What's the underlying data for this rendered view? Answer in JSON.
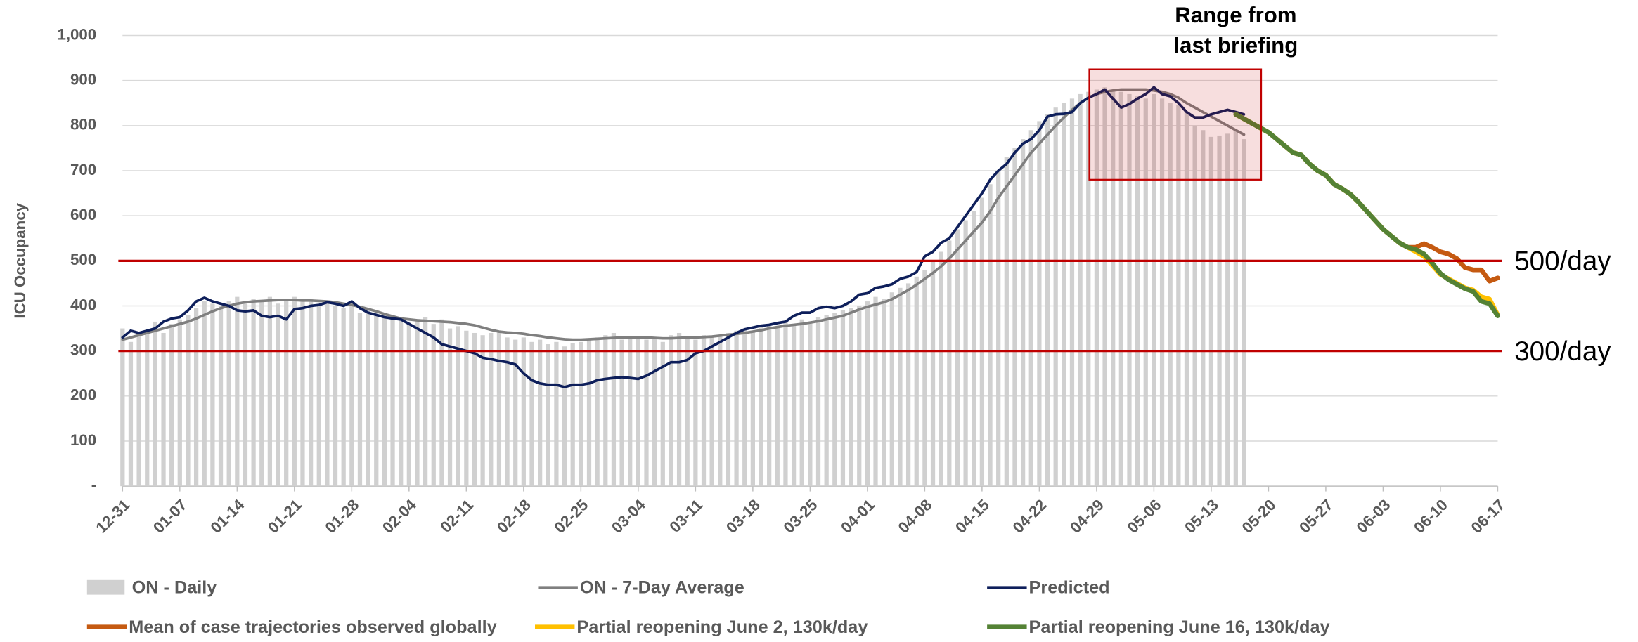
{
  "chart_data": {
    "type": "line",
    "y_label": "ICU Occupancy",
    "categories": [
      "12-31",
      null,
      null,
      null,
      null,
      null,
      null,
      "01-07",
      null,
      null,
      null,
      null,
      null,
      null,
      "01-14",
      null,
      null,
      null,
      null,
      null,
      null,
      "01-21",
      null,
      null,
      null,
      null,
      null,
      null,
      "01-28",
      null,
      null,
      null,
      null,
      null,
      null,
      "02-04",
      null,
      null,
      null,
      null,
      null,
      null,
      "02-11",
      null,
      null,
      null,
      null,
      null,
      null,
      "02-18",
      null,
      null,
      null,
      null,
      null,
      null,
      "02-25",
      null,
      null,
      null,
      null,
      null,
      null,
      "03-04",
      null,
      null,
      null,
      null,
      null,
      null,
      "03-11",
      null,
      null,
      null,
      null,
      null,
      null,
      "03-18",
      null,
      null,
      null,
      null,
      null,
      null,
      "03-25",
      null,
      null,
      null,
      null,
      null,
      null,
      "04-01",
      null,
      null,
      null,
      null,
      null,
      null,
      "04-08",
      null,
      null,
      null,
      null,
      null,
      null,
      "04-15",
      null,
      null,
      null,
      null,
      null,
      null,
      "04-22",
      null,
      null,
      null,
      null,
      null,
      null,
      "04-29",
      null,
      null,
      null,
      null,
      null,
      null,
      "05-06",
      null,
      null,
      null,
      null,
      null,
      null,
      "05-13",
      null,
      null,
      null,
      null,
      null,
      null,
      "05-20",
      null,
      null,
      null,
      null,
      null,
      null,
      "05-27",
      null,
      null,
      null,
      null,
      null,
      null,
      "06-03",
      null,
      null,
      null,
      null,
      null,
      null,
      "06-10",
      null,
      null,
      null,
      null,
      null,
      null,
      "06-17"
    ],
    "series": [
      {
        "name": "ON - Daily",
        "type": "bar",
        "color": "#d0d0d0",
        "values": [
          350,
          320,
          340,
          345,
          365,
          340,
          360,
          370,
          380,
          395,
          410,
          405,
          400,
          410,
          420,
          405,
          415,
          410,
          420,
          405,
          415,
          420,
          410,
          415,
          405,
          410,
          400,
          395,
          400,
          385,
          390,
          380,
          385,
          375,
          370,
          365,
          370,
          375,
          360,
          370,
          350,
          355,
          345,
          340,
          335,
          340,
          345,
          330,
          325,
          330,
          320,
          325,
          315,
          320,
          310,
          318,
          320,
          325,
          330,
          335,
          340,
          325,
          330,
          330,
          325,
          330,
          320,
          335,
          340,
          330,
          325,
          335,
          330,
          335,
          340,
          345,
          350,
          345,
          355,
          360,
          355,
          365,
          360,
          370,
          365,
          375,
          380,
          385,
          390,
          395,
          400,
          410,
          420,
          415,
          430,
          440,
          450,
          465,
          480,
          500,
          520,
          545,
          570,
          590,
          610,
          640,
          670,
          700,
          730,
          750,
          770,
          790,
          810,
          825,
          840,
          850,
          860,
          870,
          875,
          880,
          885,
          880,
          875,
          870,
          865,
          860,
          870,
          860,
          850,
          845,
          830,
          800,
          790,
          775,
          778,
          782,
          790,
          770,
          null,
          null,
          null,
          null,
          null,
          null,
          null,
          null,
          null,
          null,
          null,
          null,
          null,
          null,
          null,
          null,
          null,
          null,
          null,
          null,
          null,
          null,
          null,
          null,
          null,
          null,
          null,
          null,
          null,
          null,
          null
        ]
      },
      {
        "name": "ON - 7-Day Average",
        "type": "line",
        "color": "#7f7f7f",
        "width": 2.5,
        "values": [
          325,
          330,
          335,
          340,
          345,
          350,
          355,
          360,
          365,
          372,
          380,
          388,
          395,
          400,
          405,
          408,
          410,
          411,
          412,
          413,
          413,
          413,
          412,
          412,
          411,
          410,
          408,
          405,
          402,
          398,
          393,
          388,
          382,
          377,
          372,
          370,
          368,
          367,
          366,
          365,
          364,
          362,
          360,
          357,
          352,
          347,
          343,
          341,
          340,
          338,
          335,
          333,
          330,
          328,
          326,
          325,
          325,
          326,
          327,
          328,
          329,
          330,
          330,
          330,
          330,
          329,
          328,
          328,
          329,
          330,
          330,
          331,
          332,
          334,
          336,
          338,
          340,
          343,
          346,
          350,
          353,
          356,
          358,
          360,
          363,
          366,
          370,
          374,
          378,
          385,
          392,
          398,
          403,
          408,
          415,
          425,
          435,
          447,
          460,
          473,
          488,
          505,
          525,
          545,
          565,
          585,
          610,
          640,
          665,
          690,
          715,
          740,
          760,
          780,
          800,
          818,
          835,
          850,
          862,
          870,
          875,
          878,
          880,
          880,
          880,
          880,
          878,
          875,
          870,
          862,
          850,
          840,
          830,
          820,
          810,
          800,
          790,
          780,
          null,
          null,
          null,
          null,
          null,
          null,
          null,
          null,
          null,
          null,
          null,
          null,
          null,
          null,
          null,
          null,
          null,
          null,
          null,
          null,
          null,
          null,
          null,
          null,
          null,
          null,
          null,
          null,
          null,
          null,
          null
        ]
      },
      {
        "name": "Predicted",
        "type": "line",
        "color": "#0e1f5b",
        "width": 2.5,
        "values": [
          330,
          345,
          340,
          345,
          350,
          365,
          372,
          375,
          390,
          410,
          418,
          410,
          405,
          400,
          390,
          388,
          390,
          378,
          375,
          378,
          370,
          393,
          395,
          400,
          402,
          408,
          405,
          400,
          410,
          395,
          385,
          380,
          375,
          372,
          370,
          360,
          350,
          340,
          330,
          315,
          310,
          305,
          300,
          295,
          285,
          282,
          278,
          275,
          270,
          250,
          235,
          228,
          225,
          225,
          220,
          225,
          225,
          228,
          235,
          238,
          240,
          242,
          240,
          238,
          245,
          255,
          265,
          275,
          275,
          280,
          295,
          300,
          310,
          320,
          330,
          340,
          348,
          352,
          356,
          358,
          362,
          365,
          378,
          385,
          385,
          395,
          398,
          395,
          400,
          410,
          425,
          428,
          440,
          443,
          448,
          460,
          465,
          475,
          510,
          520,
          540,
          550,
          575,
          600,
          625,
          650,
          680,
          700,
          715,
          740,
          760,
          770,
          790,
          820,
          825,
          826,
          830,
          850,
          862,
          870,
          880,
          860,
          840,
          848,
          860,
          870,
          885,
          870,
          865,
          850,
          830,
          818,
          818,
          825,
          830,
          835,
          830,
          825,
          null,
          null,
          null,
          null,
          null,
          null,
          null,
          null,
          null,
          null,
          null,
          null,
          null,
          null,
          null,
          null,
          null,
          null,
          null,
          null,
          null,
          null,
          null,
          null,
          null,
          null,
          null,
          null,
          null,
          null,
          null
        ]
      },
      {
        "name": "Mean of case trajectories observed globally",
        "type": "line",
        "color": "#c55a11",
        "width": 4.5,
        "values": [
          null,
          null,
          null,
          null,
          null,
          null,
          null,
          null,
          null,
          null,
          null,
          null,
          null,
          null,
          null,
          null,
          null,
          null,
          null,
          null,
          null,
          null,
          null,
          null,
          null,
          null,
          null,
          null,
          null,
          null,
          null,
          null,
          null,
          null,
          null,
          null,
          null,
          null,
          null,
          null,
          null,
          null,
          null,
          null,
          null,
          null,
          null,
          null,
          null,
          null,
          null,
          null,
          null,
          null,
          null,
          null,
          null,
          null,
          null,
          null,
          null,
          null,
          null,
          null,
          null,
          null,
          null,
          null,
          null,
          null,
          null,
          null,
          null,
          null,
          null,
          null,
          null,
          null,
          null,
          null,
          null,
          null,
          null,
          null,
          null,
          null,
          null,
          null,
          null,
          null,
          null,
          null,
          null,
          null,
          null,
          null,
          null,
          null,
          null,
          null,
          null,
          null,
          null,
          null,
          null,
          null,
          null,
          null,
          null,
          null,
          null,
          null,
          null,
          null,
          null,
          null,
          null,
          null,
          null,
          null,
          null,
          null,
          null,
          null,
          null,
          null,
          null,
          null,
          null,
          null,
          null,
          null,
          null,
          null,
          null,
          null,
          825,
          815,
          805,
          795,
          785,
          770,
          755,
          740,
          735,
          715,
          700,
          690,
          670,
          660,
          648,
          630,
          610,
          590,
          570,
          555,
          540,
          530,
          530,
          538,
          530,
          520,
          515,
          505,
          485,
          480,
          480,
          455,
          462
        ]
      },
      {
        "name": "Partial reopening June 2, 130k/day",
        "type": "line",
        "color": "#ffc000",
        "width": 4.5,
        "values": [
          null,
          null,
          null,
          null,
          null,
          null,
          null,
          null,
          null,
          null,
          null,
          null,
          null,
          null,
          null,
          null,
          null,
          null,
          null,
          null,
          null,
          null,
          null,
          null,
          null,
          null,
          null,
          null,
          null,
          null,
          null,
          null,
          null,
          null,
          null,
          null,
          null,
          null,
          null,
          null,
          null,
          null,
          null,
          null,
          null,
          null,
          null,
          null,
          null,
          null,
          null,
          null,
          null,
          null,
          null,
          null,
          null,
          null,
          null,
          null,
          null,
          null,
          null,
          null,
          null,
          null,
          null,
          null,
          null,
          null,
          null,
          null,
          null,
          null,
          null,
          null,
          null,
          null,
          null,
          null,
          null,
          null,
          null,
          null,
          null,
          null,
          null,
          null,
          null,
          null,
          null,
          null,
          null,
          null,
          null,
          null,
          null,
          null,
          null,
          null,
          null,
          null,
          null,
          null,
          null,
          null,
          null,
          null,
          null,
          null,
          null,
          null,
          null,
          null,
          null,
          null,
          null,
          null,
          null,
          null,
          null,
          null,
          null,
          null,
          null,
          null,
          null,
          null,
          null,
          null,
          null,
          null,
          null,
          null,
          null,
          null,
          825,
          815,
          805,
          795,
          785,
          770,
          755,
          740,
          735,
          715,
          700,
          690,
          670,
          660,
          648,
          630,
          610,
          590,
          570,
          555,
          540,
          530,
          520,
          510,
          490,
          470,
          460,
          450,
          440,
          435,
          420,
          415,
          380
        ]
      },
      {
        "name": "Partial reopening June 16, 130k/day",
        "type": "line",
        "color": "#548235",
        "width": 4.5,
        "values": [
          null,
          null,
          null,
          null,
          null,
          null,
          null,
          null,
          null,
          null,
          null,
          null,
          null,
          null,
          null,
          null,
          null,
          null,
          null,
          null,
          null,
          null,
          null,
          null,
          null,
          null,
          null,
          null,
          null,
          null,
          null,
          null,
          null,
          null,
          null,
          null,
          null,
          null,
          null,
          null,
          null,
          null,
          null,
          null,
          null,
          null,
          null,
          null,
          null,
          null,
          null,
          null,
          null,
          null,
          null,
          null,
          null,
          null,
          null,
          null,
          null,
          null,
          null,
          null,
          null,
          null,
          null,
          null,
          null,
          null,
          null,
          null,
          null,
          null,
          null,
          null,
          null,
          null,
          null,
          null,
          null,
          null,
          null,
          null,
          null,
          null,
          null,
          null,
          null,
          null,
          null,
          null,
          null,
          null,
          null,
          null,
          null,
          null,
          null,
          null,
          null,
          null,
          null,
          null,
          null,
          null,
          null,
          null,
          null,
          null,
          null,
          null,
          null,
          null,
          null,
          null,
          null,
          null,
          null,
          null,
          null,
          null,
          null,
          null,
          null,
          null,
          null,
          null,
          null,
          null,
          null,
          null,
          null,
          null,
          null,
          null,
          825,
          815,
          805,
          795,
          785,
          770,
          755,
          740,
          735,
          715,
          700,
          690,
          670,
          660,
          648,
          630,
          610,
          590,
          570,
          555,
          540,
          530,
          525,
          515,
          495,
          472,
          458,
          448,
          438,
          432,
          410,
          405,
          378
        ]
      }
    ],
    "ylim": [
      0,
      1000
    ],
    "yticks": [
      {
        "value": 0,
        "label": "-"
      },
      100,
      200,
      300,
      400,
      500,
      600,
      700,
      800,
      900,
      {
        "value": 1000,
        "label": "1,000"
      }
    ],
    "grid": true,
    "reference_lines": [
      {
        "value": 500,
        "label": "500/day",
        "color": "#c00000"
      },
      {
        "value": 300,
        "label": "300/day",
        "color": "#c00000"
      }
    ],
    "annotation": {
      "text": [
        "Range from",
        "last briefing"
      ],
      "x_range": [
        "04-29",
        "05-20"
      ],
      "y_range": [
        680,
        925
      ],
      "color": "#c00000"
    }
  }
}
